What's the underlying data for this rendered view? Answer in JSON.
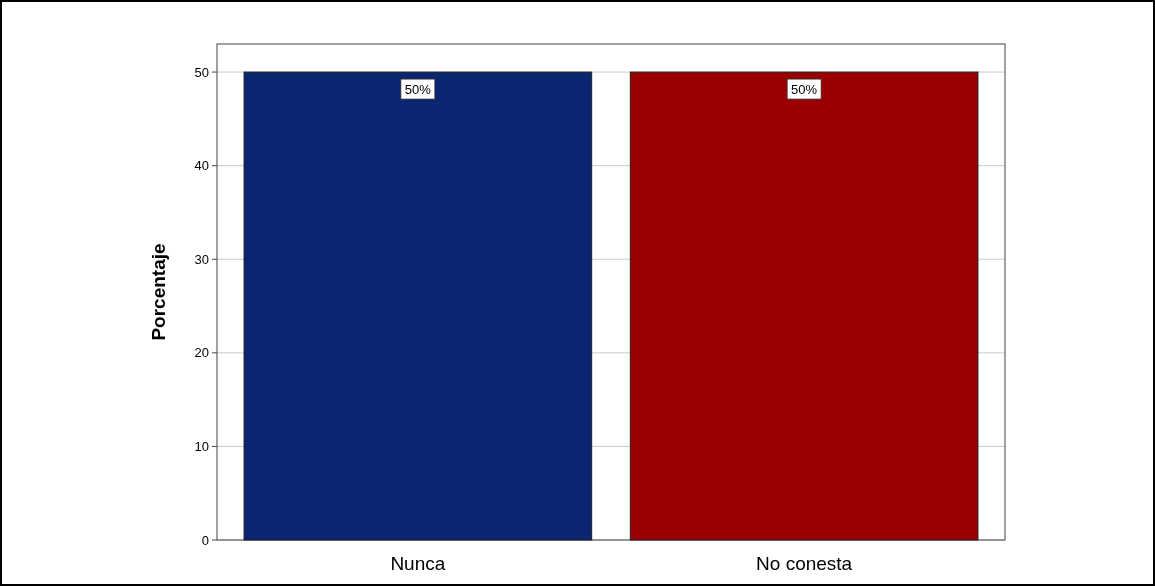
{
  "chart_data": {
    "type": "bar",
    "ylabel": "Porcentaje",
    "categories": [
      "Nunca",
      "No conesta"
    ],
    "values": [
      50,
      50
    ],
    "colors": [
      "#0a2670",
      "#990000"
    ],
    "value_labels": [
      "50%",
      "50%"
    ],
    "ylim": [
      0,
      53
    ],
    "yticks": [
      0,
      10,
      20,
      30,
      40,
      50
    ],
    "grid": "y"
  }
}
